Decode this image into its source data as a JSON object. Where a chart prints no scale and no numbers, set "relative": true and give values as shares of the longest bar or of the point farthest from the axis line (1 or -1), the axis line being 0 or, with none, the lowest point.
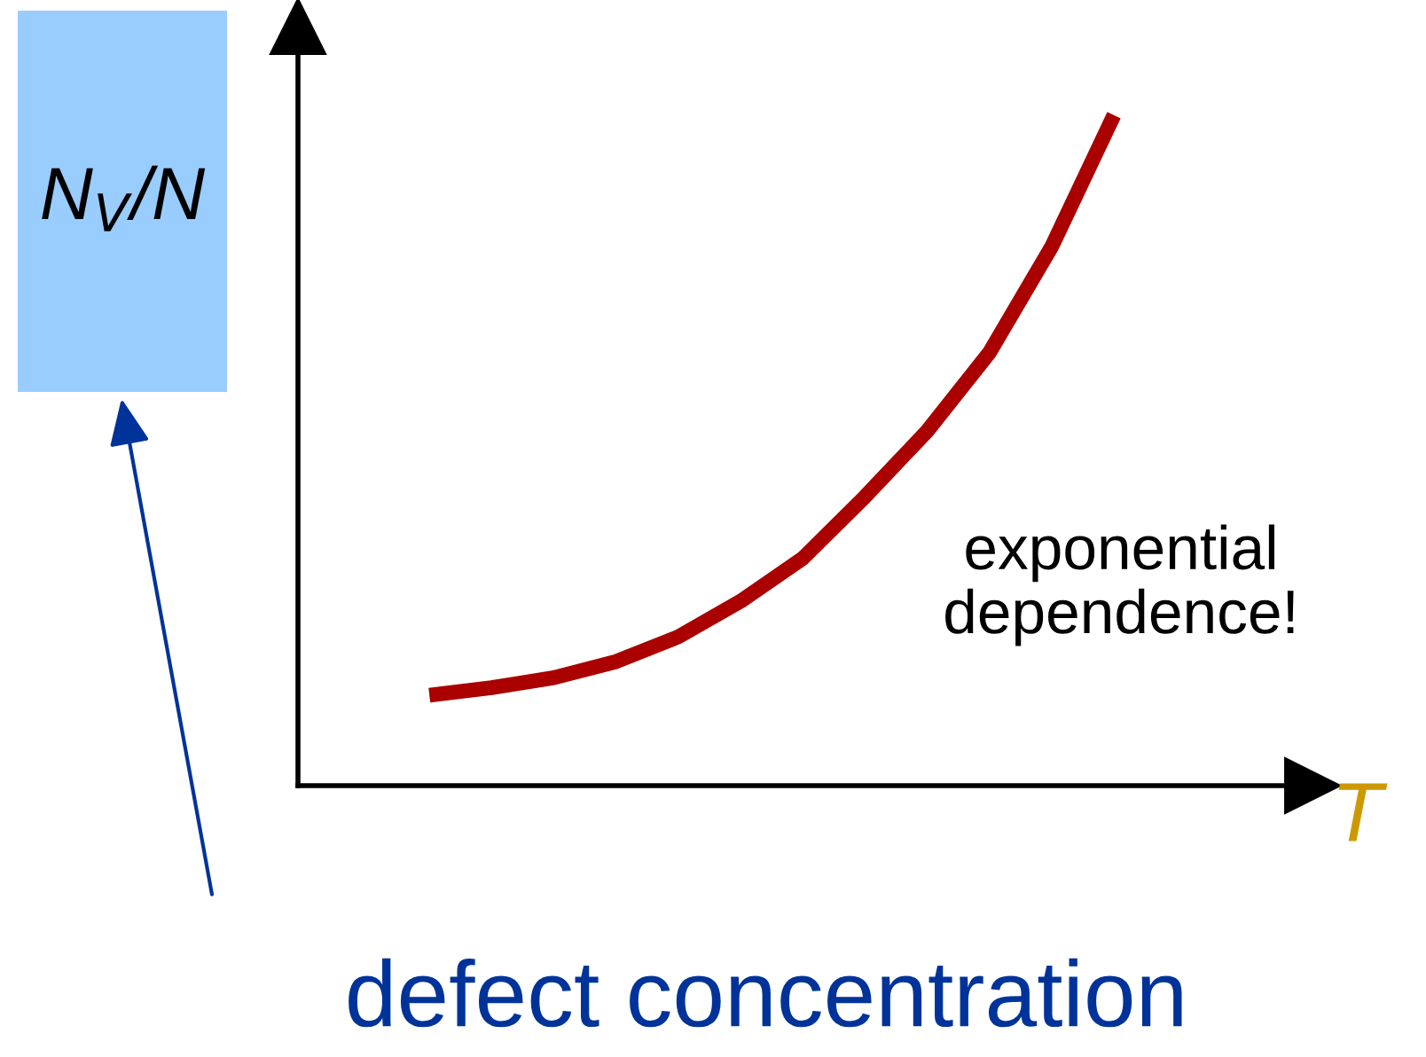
{
  "chart_data": {
    "type": "line",
    "relative": true,
    "xlabel": "T",
    "ylabel": "N$_{V}$/N",
    "categories": [
      null,
      null,
      null,
      null,
      null,
      null,
      null,
      null,
      null,
      null,
      null,
      null
    ],
    "series": [
      {
        "color": "#aa0000",
        "values": [
          0.135,
          0.146,
          0.161,
          0.185,
          0.222,
          0.275,
          0.339,
          0.431,
          0.529,
          0.646,
          0.804,
          1
        ]
      }
    ],
    "annotations": [
      "exponential\ndependence!",
      "defect concentration"
    ],
    "grid": false,
    "marker": "none",
    "line_style": "solid"
  }
}
